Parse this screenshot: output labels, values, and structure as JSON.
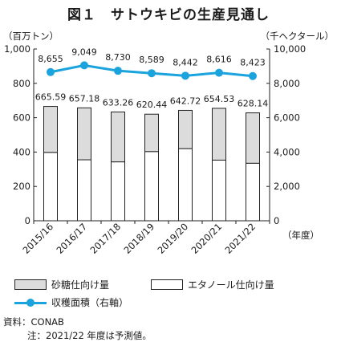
{
  "title": "図１　サトウキビの生産見通し",
  "left_unit": "（百万トン）",
  "right_unit": "（千ヘクタール）",
  "x_unit": "（年度）",
  "legend": {
    "sugar": "砂糖仕向け量",
    "ethanol": "エタノール仕向け量",
    "area": "収穫面積（右軸）"
  },
  "source": "資料：CONAB",
  "note": "注：2021/22 年度は予測値。",
  "colors": {
    "sugar": "#dcdcdc",
    "ethanol": "#ffffff",
    "area": "#1aa3dc",
    "axis": "#222222"
  },
  "chart_data": {
    "type": "bar",
    "stacked": true,
    "categories": [
      "2015/16",
      "2016/17",
      "2017/18",
      "2018/19",
      "2019/20",
      "2020/21",
      "2021/22"
    ],
    "series": [
      {
        "name": "エタノール仕向け量",
        "axis": "left",
        "values": [
          398,
          355,
          343,
          403,
          420,
          353,
          335
        ]
      },
      {
        "name": "砂糖仕向け量",
        "axis": "left",
        "values": [
          267.59,
          302.18,
          290.26,
          217.44,
          222.72,
          301.53,
          293.14
        ]
      },
      {
        "name": "収穫面積（右軸）",
        "type": "line",
        "axis": "right",
        "values": [
          8655,
          9049,
          8730,
          8589,
          8442,
          8616,
          8423
        ]
      }
    ],
    "totals": [
      665.59,
      657.18,
      633.26,
      620.44,
      642.72,
      654.53,
      628.14
    ],
    "total_labels": [
      "665.59",
      "657.18",
      "633.26",
      "620.44",
      "642.72",
      "654.53",
      "628.14"
    ],
    "area_labels": [
      "8,655",
      "9,049",
      "8,730",
      "8,589",
      "8,442",
      "8,616",
      "8,423"
    ],
    "y_left": {
      "range": [
        0,
        1000
      ],
      "ticks": [
        "0",
        "200",
        "400",
        "600",
        "800",
        "1,000"
      ]
    },
    "y_right": {
      "range": [
        0,
        10000
      ],
      "ticks": [
        "0",
        "2,000",
        "4,000",
        "6,000",
        "8,000",
        "10,000"
      ]
    },
    "grid": false
  }
}
